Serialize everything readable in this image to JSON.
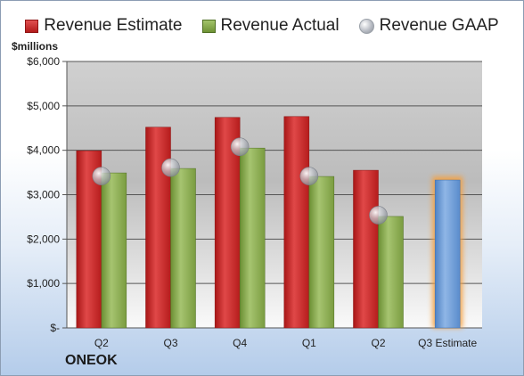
{
  "company": "ONEOK",
  "unit_label": "$millions",
  "chart_data": {
    "type": "bar",
    "categories": [
      "Q2",
      "Q3",
      "Q4",
      "Q1",
      "Q2",
      "Q3 Estimate"
    ],
    "series": [
      {
        "name": "Revenue Estimate",
        "values": [
          3990,
          4520,
          4740,
          4760,
          3550,
          null
        ],
        "color": "#c62626"
      },
      {
        "name": "Revenue Actual",
        "values": [
          3490,
          3590,
          4050,
          3410,
          2510,
          null
        ],
        "color": "#8aad4f"
      },
      {
        "name": "Revenue GAAP",
        "values": [
          3420,
          3610,
          4080,
          3420,
          2540,
          null
        ],
        "marker": "sphere",
        "color": "#c0c4cc"
      }
    ],
    "forecast": {
      "category": "Q3 Estimate",
      "value": 3330,
      "color": "#6f9fd8",
      "glow": "#f5a040"
    },
    "yticks": [
      0,
      1000,
      2000,
      3000,
      4000,
      5000,
      6000
    ],
    "ytick_labels": [
      "$-",
      "$1,000",
      "$2,000",
      "$3,000",
      "$4,000",
      "$5,000",
      "$6,000"
    ],
    "ylim": [
      0,
      6000
    ],
    "legend": "top",
    "grid": true
  }
}
